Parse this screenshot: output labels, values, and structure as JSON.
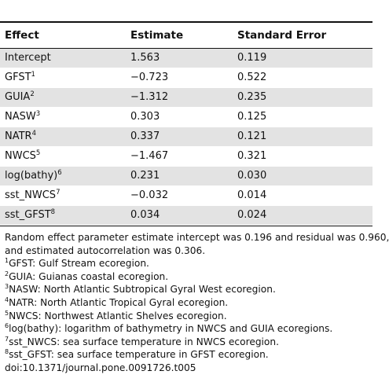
{
  "table": {
    "headers": {
      "effect": "Effect",
      "estimate": "Estimate",
      "standard_error": "Standard Error"
    },
    "rows": [
      {
        "effect": "Intercept",
        "sup": "",
        "estimate": "1.563",
        "se": "0.119"
      },
      {
        "effect": "GFST",
        "sup": "1",
        "estimate": "−0.723",
        "se": "0.522"
      },
      {
        "effect": "GUIA",
        "sup": "2",
        "estimate": "−1.312",
        "se": "0.235"
      },
      {
        "effect": "NASW",
        "sup": "3",
        "estimate": "0.303",
        "se": "0.125"
      },
      {
        "effect": "NATR",
        "sup": "4",
        "estimate": "0.337",
        "se": "0.121"
      },
      {
        "effect": "NWCS",
        "sup": "5",
        "estimate": "−1.467",
        "se": "0.321"
      },
      {
        "effect": "log(bathy)",
        "sup": "6",
        "estimate": "0.231",
        "se": "0.030"
      },
      {
        "effect": "sst_NWCS",
        "sup": "7",
        "estimate": "−0.032",
        "se": "0.014"
      },
      {
        "effect": "sst_GFST",
        "sup": "8",
        "estimate": "0.034",
        "se": "0.024"
      }
    ]
  },
  "notes": {
    "random_effect_line1": "Random effect parameter estimate intercept was 0.196 and residual was 0.960,",
    "random_effect_line2": "and estimated autocorrelation was 0.306.",
    "footnotes": [
      {
        "sup": "1",
        "text": "GFST: Gulf Stream ecoregion."
      },
      {
        "sup": "2",
        "text": "GUIA: Guianas coastal ecoregion."
      },
      {
        "sup": "3",
        "text": "NASW: North Atlantic Subtropical Gyral West ecoregion."
      },
      {
        "sup": "4",
        "text": "NATR: North Atlantic Tropical Gyral ecoregion."
      },
      {
        "sup": "5",
        "text": "NWCS: Northwest Atlantic Shelves ecoregion."
      },
      {
        "sup": "6",
        "text": "log(bathy): logarithm of bathymetry in NWCS and GUIA ecoregions."
      },
      {
        "sup": "7",
        "text": "sst_NWCS: sea surface temperature in NWCS ecoregion."
      },
      {
        "sup": "8",
        "text": "sst_GFST: sea surface temperature in GFST ecoregion."
      }
    ],
    "doi": "doi:10.1371/journal.pone.0091726.t005"
  }
}
